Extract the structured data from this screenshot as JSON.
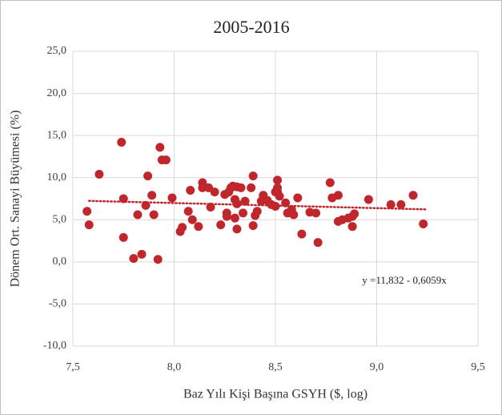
{
  "chart_data": {
    "type": "scatter",
    "title": "2005-2016",
    "x_label": "Baz Yılı Kişi Başına GSYH ($, log)",
    "y_label": "Dönem Ort. Sanayi  Büyümesi (%)",
    "annotation": "y =11,832 - 0,6059x",
    "color": "#c0272d",
    "grid": true,
    "xlim": [
      7.5,
      9.5
    ],
    "xticks": [
      {
        "value": 7.5,
        "label": "7,5"
      },
      {
        "value": 8.0,
        "label": "8,0"
      },
      {
        "value": 8.5,
        "label": "8,5"
      },
      {
        "value": 9.0,
        "label": "9,0"
      },
      {
        "value": 9.5,
        "label": "9,5"
      }
    ],
    "ylim": [
      -10,
      25
    ],
    "yticks": [
      {
        "value": -10,
        "label": "-10,0"
      },
      {
        "value": -5,
        "label": "-5,0"
      },
      {
        "value": 0,
        "label": "0,0"
      },
      {
        "value": 5,
        "label": "5,0"
      },
      {
        "value": 10,
        "label": "10,0"
      },
      {
        "value": 15,
        "label": "15,0"
      },
      {
        "value": 20,
        "label": "20,0"
      },
      {
        "value": 25,
        "label": "25,0"
      }
    ],
    "trendline": {
      "intercept": 11.832,
      "slope": -0.6059,
      "x_range": [
        7.58,
        9.24
      ],
      "color": "#c0272d"
    },
    "x": [
      7.57,
      7.58,
      7.63,
      7.74,
      7.75,
      7.75,
      7.8,
      7.84,
      7.82,
      7.86,
      7.87,
      7.89,
      7.9,
      7.92,
      7.93,
      7.94,
      7.96,
      7.99,
      8.03,
      8.04,
      8.07,
      8.08,
      8.09,
      8.12,
      8.14,
      8.14,
      8.17,
      8.18,
      8.2,
      8.23,
      8.25,
      8.26,
      8.27,
      8.26,
      8.28,
      8.29,
      8.3,
      8.3,
      8.31,
      8.31,
      8.33,
      8.31,
      8.34,
      8.35,
      8.38,
      8.39,
      8.39,
      8.4,
      8.41,
      8.43,
      8.44,
      8.46,
      8.48,
      8.5,
      8.5,
      8.51,
      8.51,
      8.51,
      8.52,
      8.55,
      8.56,
      8.59,
      8.58,
      8.61,
      8.63,
      8.67,
      8.7,
      8.71,
      8.77,
      8.78,
      8.81,
      8.81,
      8.83,
      8.86,
      8.88,
      8.88,
      8.89,
      8.96,
      9.07,
      9.12,
      9.18,
      9.23
    ],
    "values": [
      6.0,
      4.4,
      10.4,
      14.2,
      7.5,
      2.9,
      0.4,
      0.9,
      5.6,
      6.7,
      10.2,
      7.9,
      5.6,
      0.3,
      13.6,
      12.1,
      12.1,
      7.6,
      3.6,
      4.1,
      6.0,
      8.5,
      5.0,
      4.2,
      9.4,
      8.8,
      8.8,
      6.5,
      8.3,
      4.4,
      8.0,
      5.8,
      8.3,
      5.4,
      8.8,
      9.0,
      7.4,
      5.2,
      8.9,
      6.9,
      8.8,
      3.9,
      5.8,
      7.2,
      8.8,
      4.3,
      10.2,
      5.5,
      6.0,
      7.2,
      7.9,
      7.3,
      6.8,
      6.6,
      8.3,
      8.8,
      9.7,
      8.3,
      7.8,
      7.0,
      5.8,
      5.6,
      6.2,
      7.6,
      3.3,
      5.9,
      5.8,
      2.3,
      9.4,
      7.6,
      7.9,
      4.8,
      5.0,
      5.2,
      5.4,
      4.2,
      5.7,
      7.4,
      6.8,
      6.8,
      7.9,
      4.5
    ]
  }
}
